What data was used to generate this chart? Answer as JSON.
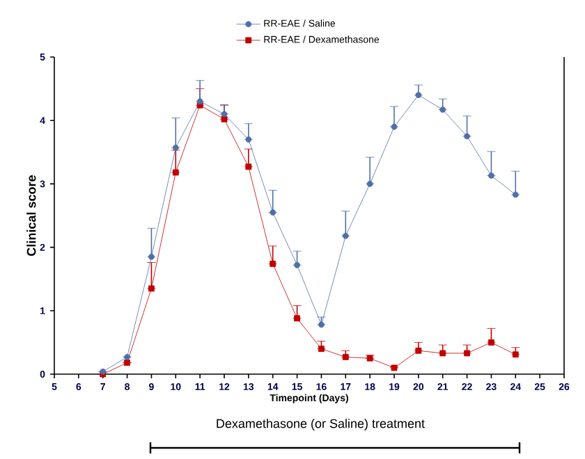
{
  "chart_data": {
    "type": "line",
    "xlabel": "Timepoint (Days)",
    "ylabel": "Clinical score",
    "x": [
      7,
      8,
      9,
      10,
      11,
      12,
      13,
      14,
      15,
      16,
      17,
      18,
      19,
      20,
      21,
      22,
      23,
      24
    ],
    "xlim": [
      5,
      26
    ],
    "xticks": [
      5,
      6,
      7,
      8,
      9,
      10,
      11,
      12,
      13,
      14,
      15,
      16,
      17,
      18,
      19,
      20,
      21,
      22,
      23,
      24,
      25,
      26
    ],
    "ylim": [
      0,
      5
    ],
    "yticks": [
      0,
      1,
      2,
      3,
      4,
      5
    ],
    "grid": false,
    "legend": "top",
    "line_style": "solid",
    "series": [
      {
        "name": "RR-EAE / Saline",
        "color": "#4f6fa8",
        "marker": "circle",
        "values": [
          0.04,
          0.27,
          1.85,
          3.57,
          4.3,
          4.1,
          3.7,
          2.55,
          1.72,
          0.78,
          2.18,
          3.0,
          3.9,
          4.4,
          4.17,
          3.75,
          3.13,
          2.83
        ],
        "errors": [
          null,
          null,
          [
            1.85,
            2.3
          ],
          [
            3.57,
            4.04
          ],
          [
            4.3,
            4.63
          ],
          [
            4.1,
            4.25
          ],
          [
            3.7,
            3.95
          ],
          [
            2.55,
            2.9
          ],
          [
            1.72,
            1.94
          ],
          [
            0.78,
            0.9
          ],
          [
            2.18,
            2.57
          ],
          [
            3.0,
            3.42
          ],
          [
            3.9,
            4.22
          ],
          [
            4.4,
            4.56
          ],
          [
            4.17,
            4.34
          ],
          [
            3.75,
            4.07
          ],
          [
            3.13,
            3.51
          ],
          [
            2.83,
            3.2
          ]
        ]
      },
      {
        "name": "RR-EAE / Dexamethasone",
        "color": "#c00000",
        "marker": "square",
        "values": [
          0.0,
          0.18,
          1.35,
          3.18,
          4.24,
          4.02,
          3.27,
          1.74,
          0.88,
          0.4,
          0.27,
          0.25,
          0.1,
          0.37,
          0.33,
          0.33,
          0.5,
          0.31
        ],
        "errors": [
          null,
          null,
          [
            1.35,
            1.76
          ],
          [
            3.18,
            3.53
          ],
          [
            4.24,
            4.5
          ],
          [
            4.02,
            4.24
          ],
          [
            3.27,
            3.55
          ],
          [
            1.74,
            2.02
          ],
          [
            0.88,
            1.08
          ],
          [
            0.4,
            0.52
          ],
          [
            0.27,
            0.37
          ],
          [
            0.25,
            0.3
          ],
          [
            0.1,
            0.12
          ],
          [
            0.37,
            0.5
          ],
          [
            0.33,
            0.46
          ],
          [
            0.33,
            0.46
          ],
          [
            0.5,
            0.72
          ],
          [
            0.31,
            0.42
          ]
        ]
      }
    ],
    "annotations": [
      "Dexamethasone (or Saline) treatment"
    ]
  }
}
